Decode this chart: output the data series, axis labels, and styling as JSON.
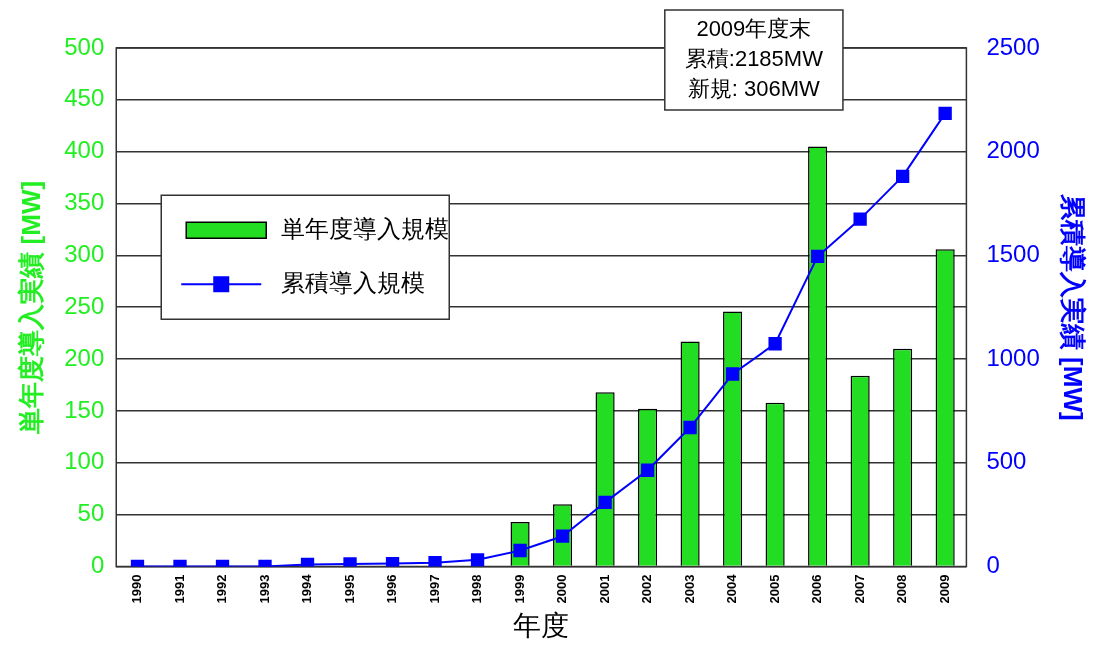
{
  "chart_data": {
    "type": "bar",
    "categories": [
      "1990",
      "1991",
      "1992",
      "1993",
      "1994",
      "1995",
      "1996",
      "1997",
      "1998",
      "1999",
      "2000",
      "2001",
      "2002",
      "2003",
      "2004",
      "2005",
      "2006",
      "2007",
      "2008",
      "2009"
    ],
    "series": [
      {
        "name": "単年度導入規模",
        "color": "#22dd22",
        "values": [
          0,
          0,
          0,
          0,
          null,
          null,
          null,
          null,
          null,
          43,
          60,
          168,
          152,
          217,
          246,
          158,
          405,
          184,
          210,
          306
        ]
      },
      {
        "name": "累積導入規模",
        "type": "line",
        "axis": "y2",
        "color": "#0000ff",
        "marker": "square",
        "values": [
          0,
          0,
          0,
          0,
          10,
          12,
          14,
          18,
          32,
          77,
          146,
          309,
          464,
          670,
          928,
          1074,
          1495,
          1675,
          1881,
          2185
        ]
      }
    ],
    "xlabel": "年度",
    "ylabel": "単年度導入実績 [MW]",
    "y2label": "累積導入実績 [MW]",
    "ylim": [
      0,
      500
    ],
    "yticks": [
      0,
      50,
      100,
      150,
      200,
      250,
      300,
      350,
      400,
      450,
      500
    ],
    "y2lim": [
      0,
      2500
    ],
    "y2ticks": [
      0,
      500,
      1000,
      1500,
      2000,
      2500
    ],
    "grid": "y",
    "legend": "left",
    "annotations": [
      "2009年度末",
      "累積:2185MW",
      "新規: 306MW"
    ]
  }
}
